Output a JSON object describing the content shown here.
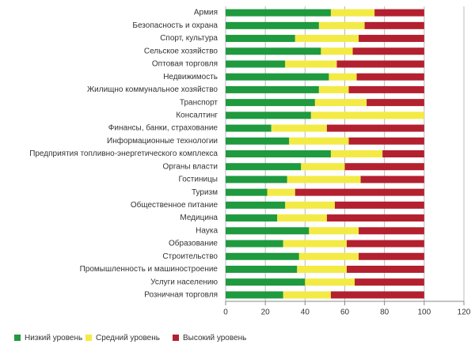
{
  "chart_data": {
    "type": "stacked-barh",
    "categories": [
      "Армия",
      "Безопасность и охрана",
      "Спорт, культура",
      "Сельское хозяйство",
      "Оптовая торговля",
      "Недвижимость",
      "Жилищно коммунальное хозяйство",
      "Транспорт",
      "Консалтинг",
      "Финансы, банки, страхование",
      "Информационные технологии",
      "Предприятия топливно-энергетического комплекса",
      "Органы власти",
      "Гостиницы",
      "Туризм",
      "Общественное питание",
      "Медицина",
      "Наука",
      "Образование",
      "Строительство",
      "Промышленность и машиностроение",
      "Услуги населению",
      "Розничная торговля"
    ],
    "series": [
      {
        "name": "Низкий уровень",
        "color": "#1f9a3e",
        "values": [
          53,
          47,
          35,
          48,
          30,
          52,
          47,
          45,
          43,
          23,
          32,
          53,
          38,
          31,
          21,
          30,
          26,
          42,
          29,
          37,
          36,
          40,
          29
        ]
      },
      {
        "name": "Средний уровень",
        "color": "#f3ea45",
        "values": [
          22,
          23,
          32,
          16,
          26,
          14,
          15,
          26,
          57,
          28,
          30,
          26,
          22,
          37,
          14,
          25,
          25,
          25,
          32,
          30,
          25,
          25,
          24
        ]
      },
      {
        "name": "Высокий уровень",
        "color": "#b3202f",
        "values": [
          25,
          30,
          33,
          36,
          44,
          34,
          38,
          29,
          0,
          49,
          38,
          21,
          40,
          32,
          65,
          45,
          49,
          33,
          39,
          33,
          39,
          35,
          47
        ]
      }
    ],
    "xlim": [
      0,
      120
    ],
    "xticks": [
      0,
      20,
      40,
      60,
      80,
      100,
      120
    ],
    "grid": true
  }
}
